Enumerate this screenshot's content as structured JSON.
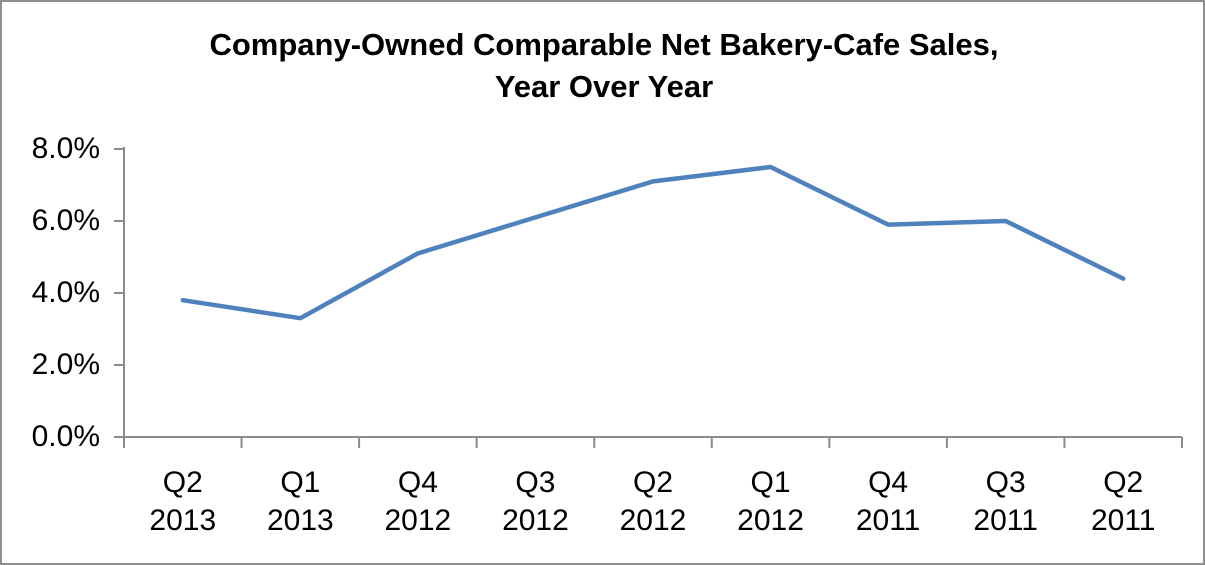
{
  "chart_data": {
    "type": "line",
    "title": "Company-Owned Comparable Net Bakery-Cafe Sales, Year Over Year",
    "title_line1": "Company-Owned Comparable Net Bakery-Cafe Sales,",
    "title_line2": "Year Over Year",
    "categories": [
      "Q2 2013",
      "Q1 2013",
      "Q4 2012",
      "Q3 2012",
      "Q2 2012",
      "Q1 2012",
      "Q4 2011",
      "Q3 2011",
      "Q2 2011"
    ],
    "values": [
      3.8,
      3.3,
      5.1,
      6.1,
      7.1,
      7.5,
      5.9,
      6.0,
      4.4
    ],
    "xlabel": "",
    "ylabel": "",
    "ylim": [
      0,
      8
    ],
    "yticks": [
      {
        "value": 0,
        "label": "0.0%"
      },
      {
        "value": 2,
        "label": "2.0%"
      },
      {
        "value": 4,
        "label": "4.0%"
      },
      {
        "value": 6,
        "label": "6.0%"
      },
      {
        "value": 8,
        "label": "8.0%"
      }
    ],
    "grid": false,
    "legend_position": "none",
    "colors": {
      "line": "#4F81BD",
      "axis": "#8C8C8C",
      "text": "#000000",
      "frame_border": "#8E8E8E",
      "background": "#FFFFFF"
    }
  }
}
